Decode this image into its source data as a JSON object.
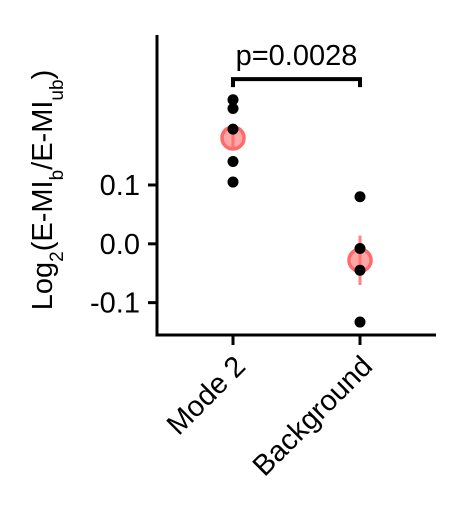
{
  "chart_data": {
    "type": "scatter",
    "categories": [
      "Mode 2",
      "Background"
    ],
    "ylabel": {
      "parts": [
        {
          "text": "Log",
          "style": "normal"
        },
        {
          "text": "2",
          "style": "sub"
        },
        {
          "text": "(E-MI",
          "style": "normal"
        },
        {
          "text": "b",
          "style": "sub"
        },
        {
          "text": "/E-MI",
          "style": "normal"
        },
        {
          "text": "ub",
          "style": "sub"
        },
        {
          "text": ")",
          "style": "normal"
        }
      ]
    },
    "y_ticks": [
      -0.1,
      0.0,
      0.1
    ],
    "y_tick_labels": [
      "-0.1",
      "0.0",
      "0.1"
    ],
    "ylim": [
      -0.155,
      0.355
    ],
    "points": [
      {
        "category": "Mode 2",
        "values": [
          0.245,
          0.23,
          0.195,
          0.14,
          0.105
        ]
      },
      {
        "category": "Background",
        "values": [
          0.08,
          -0.008,
          -0.045,
          -0.133
        ]
      }
    ],
    "means": [
      {
        "category": "Mode 2",
        "mean": 0.18,
        "error_low": 0.163,
        "error_high": 0.197
      },
      {
        "category": "Background",
        "mean": -0.028,
        "error_low": -0.07,
        "error_high": 0.014
      }
    ],
    "significance": {
      "from": "Mode 2",
      "to": "Background",
      "label": "p=0.0028",
      "y": 0.28
    },
    "colors": {
      "points": "#000000",
      "mean_marker": "#ff6b6b",
      "axis": "#000000"
    }
  }
}
